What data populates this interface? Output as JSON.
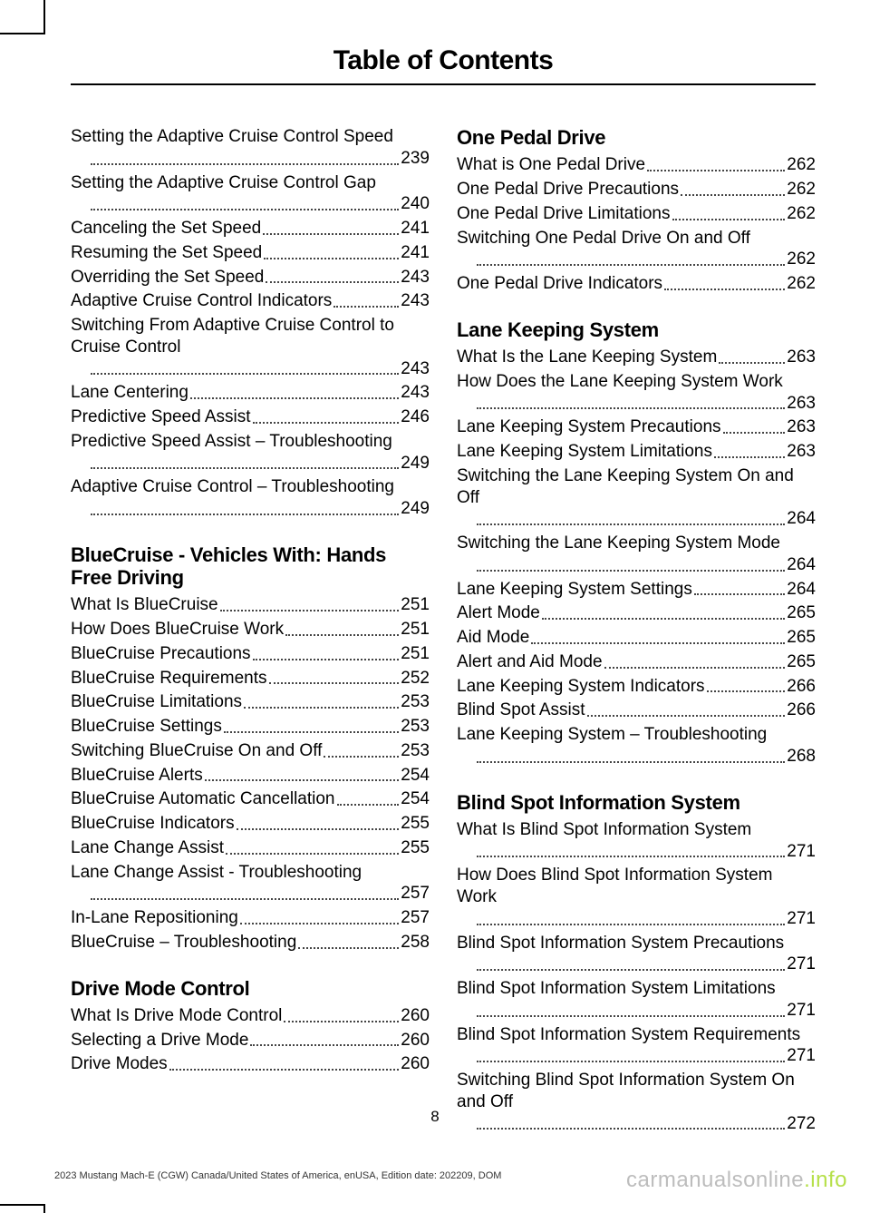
{
  "title": "Table of Contents",
  "page_number": "8",
  "footer_left": "2023 Mustang Mach-E (CGW) Canada/United States of America, enUSA, Edition date: 202209, DOM",
  "footer_right_a": "carmanualsonline",
  "footer_right_b": ".info",
  "left_col": [
    {
      "type": "entry",
      "label": "Setting the Adaptive Cruise Control Speed",
      "wrap": true,
      "page": "239"
    },
    {
      "type": "entry",
      "label": "Setting the Adaptive Cruise Control Gap",
      "wrap": true,
      "dotsOnly": true,
      "page": "240"
    },
    {
      "type": "entry",
      "label": "Canceling the Set Speed",
      "page": "241"
    },
    {
      "type": "entry",
      "label": "Resuming the Set Speed",
      "page": "241"
    },
    {
      "type": "entry",
      "label": "Overriding the Set Speed",
      "page": "243"
    },
    {
      "type": "entry",
      "label": "Adaptive Cruise Control Indicators",
      "page": "243"
    },
    {
      "type": "entry",
      "label": "Switching From Adaptive Cruise Control to Cruise Control",
      "wrap": true,
      "page": "243"
    },
    {
      "type": "entry",
      "label": "Lane Centering",
      "page": "243"
    },
    {
      "type": "entry",
      "label": "Predictive Speed Assist",
      "page": "246"
    },
    {
      "type": "entry",
      "label": "Predictive Speed Assist – Troubleshooting",
      "wrap": true,
      "page": "249"
    },
    {
      "type": "entry",
      "label": "Adaptive Cruise Control – Troubleshooting",
      "wrap": true,
      "page": "249"
    },
    {
      "type": "head",
      "label": "BlueCruise - Vehicles With: Hands Free Driving"
    },
    {
      "type": "entry",
      "label": "What Is BlueCruise",
      "page": "251"
    },
    {
      "type": "entry",
      "label": "How Does BlueCruise Work",
      "page": "251"
    },
    {
      "type": "entry",
      "label": "BlueCruise Precautions",
      "page": "251"
    },
    {
      "type": "entry",
      "label": "BlueCruise Requirements",
      "page": "252"
    },
    {
      "type": "entry",
      "label": "BlueCruise Limitations",
      "page": "253"
    },
    {
      "type": "entry",
      "label": "BlueCruise Settings",
      "page": "253"
    },
    {
      "type": "entry",
      "label": "Switching BlueCruise On and Off",
      "page": "253"
    },
    {
      "type": "entry",
      "label": "BlueCruise Alerts",
      "page": "254"
    },
    {
      "type": "entry",
      "label": "BlueCruise Automatic Cancellation",
      "page": "254"
    },
    {
      "type": "entry",
      "label": "BlueCruise Indicators",
      "page": "255"
    },
    {
      "type": "entry",
      "label": "Lane Change Assist",
      "page": "255"
    },
    {
      "type": "entry",
      "label": "Lane Change Assist - Troubleshooting",
      "wrap": true,
      "dotsOnly": true,
      "page": "257"
    },
    {
      "type": "entry",
      "label": "In-Lane Repositioning",
      "page": "257"
    },
    {
      "type": "entry",
      "label": "BlueCruise – Troubleshooting",
      "page": "258"
    },
    {
      "type": "head",
      "label": "Drive Mode Control"
    },
    {
      "type": "entry",
      "label": "What Is Drive Mode Control",
      "page": "260"
    },
    {
      "type": "entry",
      "label": "Selecting a Drive Mode",
      "page": "260"
    },
    {
      "type": "entry",
      "label": "Drive Modes",
      "page": "260"
    }
  ],
  "right_col": [
    {
      "type": "head",
      "label": "One Pedal Drive"
    },
    {
      "type": "entry",
      "label": "What is One Pedal Drive",
      "page": "262"
    },
    {
      "type": "entry",
      "label": "One Pedal Drive Precautions",
      "page": "262"
    },
    {
      "type": "entry",
      "label": "One Pedal Drive Limitations",
      "page": "262"
    },
    {
      "type": "entry",
      "label": "Switching One Pedal Drive On and Off",
      "wrap": true,
      "dotsOnly": true,
      "page": "262"
    },
    {
      "type": "entry",
      "label": "One Pedal Drive Indicators",
      "page": "262"
    },
    {
      "type": "head",
      "label": "Lane Keeping System"
    },
    {
      "type": "entry",
      "label": "What Is the Lane Keeping System",
      "page": "263"
    },
    {
      "type": "entry",
      "label": "How Does the Lane Keeping System Work",
      "wrap": true,
      "page": "263"
    },
    {
      "type": "entry",
      "label": "Lane Keeping System Precautions",
      "page": "263"
    },
    {
      "type": "entry",
      "label": "Lane Keeping System Limitations",
      "page": "263"
    },
    {
      "type": "entry",
      "label": "Switching the Lane Keeping System On and Off",
      "wrap": true,
      "page": "264"
    },
    {
      "type": "entry",
      "label": "Switching the Lane Keeping System Mode",
      "wrap": true,
      "page": "264"
    },
    {
      "type": "entry",
      "label": "Lane Keeping System Settings",
      "page": "264"
    },
    {
      "type": "entry",
      "label": "Alert Mode",
      "page": "265"
    },
    {
      "type": "entry",
      "label": "Aid Mode",
      "page": "265"
    },
    {
      "type": "entry",
      "label": "Alert and Aid Mode",
      "page": "265"
    },
    {
      "type": "entry",
      "label": "Lane Keeping System Indicators",
      "page": "266"
    },
    {
      "type": "entry",
      "label": "Blind Spot Assist",
      "page": "266"
    },
    {
      "type": "entry",
      "label": "Lane Keeping System – Troubleshooting",
      "wrap": true,
      "dotsOnly": true,
      "page": "268"
    },
    {
      "type": "head",
      "label": "Blind Spot Information System"
    },
    {
      "type": "entry",
      "label": "What Is Blind Spot Information System",
      "wrap": true,
      "dotsOnly": true,
      "page": "271"
    },
    {
      "type": "entry",
      "label": "How Does Blind Spot Information System Work",
      "wrap": true,
      "page": "271"
    },
    {
      "type": "entry",
      "label": "Blind Spot Information System Precautions",
      "wrap": true,
      "page": "271"
    },
    {
      "type": "entry",
      "label": "Blind Spot Information System Limitations",
      "wrap": true,
      "page": "271"
    },
    {
      "type": "entry",
      "label": "Blind Spot Information System Requirements",
      "wrap": true,
      "page": "271"
    },
    {
      "type": "entry",
      "label": "Switching Blind Spot Information System On and Off",
      "wrap": true,
      "page": "272"
    }
  ]
}
